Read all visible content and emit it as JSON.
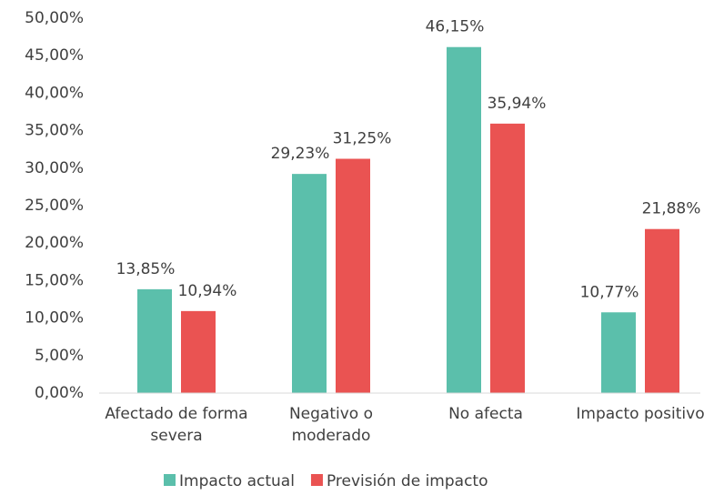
{
  "chart_data": {
    "type": "bar",
    "categories": [
      "Afectado de forma severa",
      "Negativo o moderado",
      "No afecta",
      "Impacto positivo"
    ],
    "series": [
      {
        "name": "Impacto actual",
        "color": "#5bbfab",
        "values": [
          13.85,
          29.23,
          46.15,
          10.77
        ],
        "value_labels": [
          "13,85%",
          "29,23%",
          "46,15%",
          "10,77%"
        ]
      },
      {
        "name": "Previsión de impacto",
        "color": "#ea5352",
        "values": [
          10.94,
          31.25,
          35.94,
          21.88
        ],
        "value_labels": [
          "10,94%",
          "31,25%",
          "35,94%",
          "21,88%"
        ]
      }
    ],
    "ylim": [
      0,
      50
    ],
    "yticks": [
      {
        "value": 0,
        "label": "0,00%"
      },
      {
        "value": 5,
        "label": "5,00%"
      },
      {
        "value": 10,
        "label": "10,00%"
      },
      {
        "value": 15,
        "label": "15,00%"
      },
      {
        "value": 20,
        "label": "20,00%"
      },
      {
        "value": 25,
        "label": "25,00%"
      },
      {
        "value": 30,
        "label": "30,00%"
      },
      {
        "value": 35,
        "label": "35,00%"
      },
      {
        "value": 40,
        "label": "40,00%"
      },
      {
        "value": 45,
        "label": "45,00%"
      },
      {
        "value": 50,
        "label": "50,00%"
      }
    ],
    "grid": false,
    "legend": "bottom"
  }
}
